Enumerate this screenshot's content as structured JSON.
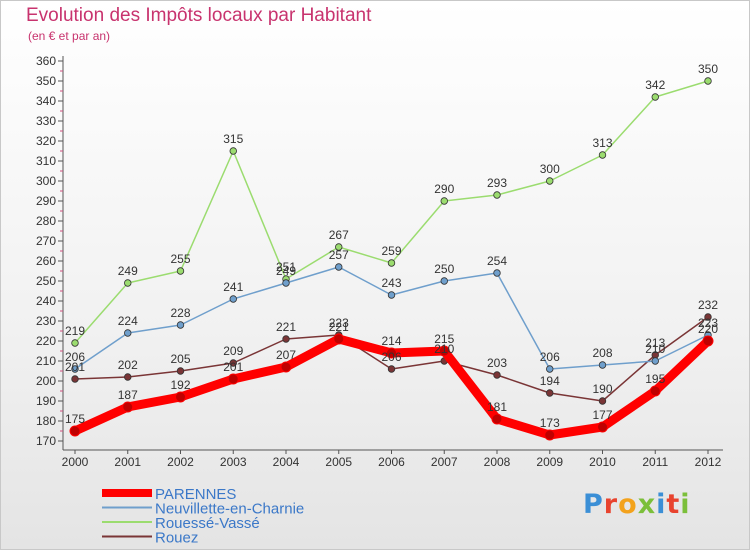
{
  "title": "Evolution des Impôts locaux par Habitant",
  "subtitle": "(en € et par an)",
  "logo_text": "Proxiti",
  "chart_data": {
    "type": "line",
    "title": "Evolution des Impôts locaux par Habitant",
    "subtitle": "(en € et par an)",
    "xlabel": "",
    "ylabel": "",
    "x": [
      "2000",
      "2001",
      "2002",
      "2003",
      "2004",
      "2005",
      "2006",
      "2007",
      "2008",
      "2009",
      "2010",
      "2011",
      "2012"
    ],
    "y_ticks": [
      170,
      180,
      190,
      200,
      210,
      220,
      230,
      240,
      250,
      260,
      270,
      280,
      290,
      300,
      310,
      320,
      330,
      340,
      350,
      360
    ],
    "ylim": [
      165,
      360
    ],
    "grid": false,
    "legend_position": "bottom-left",
    "series": [
      {
        "name": "PARENNES",
        "color": "#ff0000",
        "values": [
          175,
          187,
          192,
          201,
          207,
          221,
          214,
          215,
          181,
          173,
          177,
          195,
          220
        ]
      },
      {
        "name": "Neuvillette-en-Charnie",
        "color": "#6f9fcc",
        "values": [
          206,
          224,
          228,
          241,
          249,
          257,
          243,
          250,
          254,
          206,
          208,
          210,
          223
        ]
      },
      {
        "name": "Rouessé-Vassé",
        "color": "#9bdc6f",
        "values": [
          219,
          249,
          255,
          315,
          251,
          267,
          259,
          290,
          293,
          300,
          313,
          342,
          350
        ]
      },
      {
        "name": "Rouez",
        "color": "#7a3536",
        "values": [
          201,
          202,
          205,
          209,
          221,
          223,
          206,
          210,
          203,
          194,
          190,
          213,
          232
        ]
      }
    ]
  }
}
